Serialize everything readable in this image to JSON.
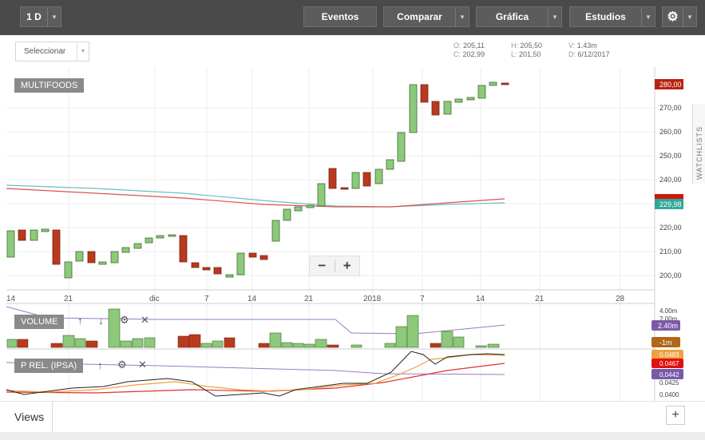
{
  "toolbar": {
    "interval": "1 D",
    "events": "Eventos",
    "compare": "Comparar",
    "chart": "Gráfica",
    "studies": "Estudios"
  },
  "subbar": {
    "select_label": "Seleccionar",
    "ohlc": {
      "o_label": "O:",
      "o": "205,11",
      "h_label": "H:",
      "h": "205,50",
      "v_label": "V:",
      "v": "1.43m",
      "c_label": "C:",
      "c": "202,99",
      "l_label": "L:",
      "l": "201,50",
      "d_label": "D:",
      "d": "6/12/2017"
    }
  },
  "main_chart": {
    "label": "MULTIFOODS",
    "y_ticks": [
      "270,00",
      "260,00",
      "250,00",
      "240,00",
      "220,00",
      "210,00",
      "200,00"
    ],
    "price_badge": "280,00",
    "ma_badge": "229,98",
    "x_ticks": [
      "14",
      "21",
      "dic",
      "7",
      "14",
      "21",
      "2018",
      "7",
      "14",
      "21",
      "28"
    ],
    "colors": {
      "up": "#8cc97a",
      "down": "#b83a1f",
      "ma_red": "#e05050",
      "ma_teal": "#6ac0c0",
      "badge_red": "#b8230f",
      "badge_teal": "#2fa89a"
    }
  },
  "volume": {
    "label": "VOLUME",
    "y_ticks": [
      "4.00m",
      "2.00m",
      "-1m"
    ],
    "badge": "2.40m",
    "badge_neg": "-1m",
    "colors": {
      "badge": "#7a5aa8",
      "neg_badge": "#b06818"
    }
  },
  "prel": {
    "label": "P REL. (IPSA)",
    "y_ticks": [
      "0.0483",
      "0.0467",
      "0.0442",
      "0.0425",
      "0.0400"
    ],
    "badge_orange": "0.0483",
    "badge_red": "0.0467",
    "badge_purple": "0,0442"
  },
  "zoom": {
    "minus": "−",
    "plus": "+"
  },
  "watchlist": "WATCHLISTS",
  "views": {
    "tab": "Views",
    "add": "+"
  }
}
